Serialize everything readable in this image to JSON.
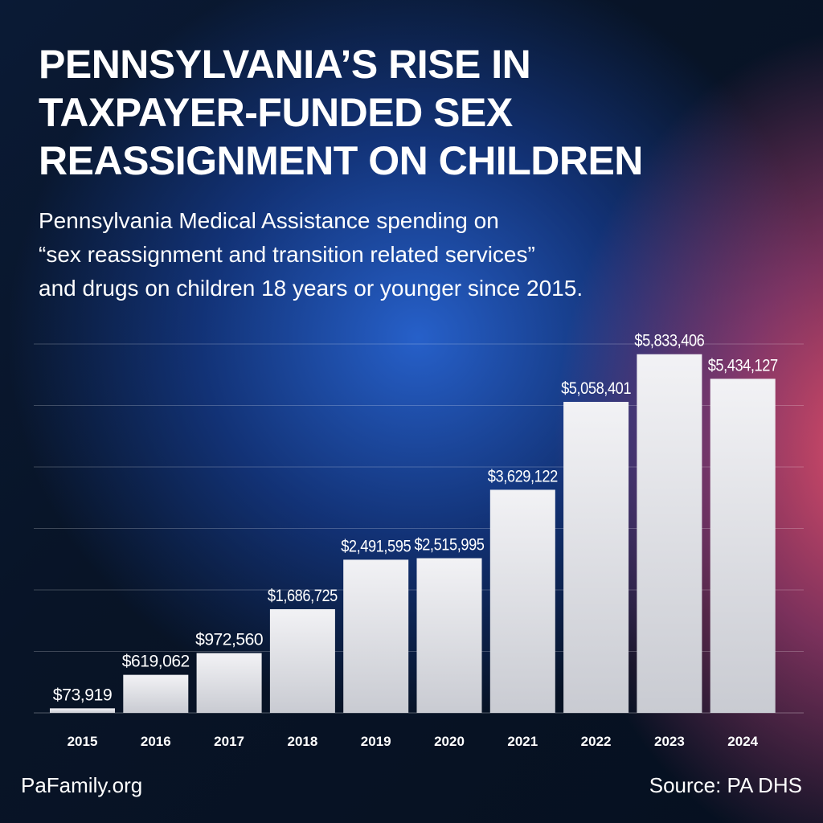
{
  "title_lines": [
    "PENNSYLVANIA’S RISE IN",
    "TAXPAYER-FUNDED SEX",
    "REASSIGNMENT ON CHILDREN"
  ],
  "subtitle_lines": [
    "Pennsylvania Medical Assistance spending on",
    "“sex reassignment and transition related services”",
    "and drugs on children 18 years or younger since 2015."
  ],
  "footer": {
    "brand": "PaFamily.org",
    "source": "Source: PA DHS"
  },
  "colors": {
    "bar": "#e8e8ec",
    "text": "#ffffff",
    "background_blue": "#1f5fc8",
    "background_pink": "#e8506e"
  },
  "chart_data": {
    "type": "bar",
    "title": "",
    "xlabel": "",
    "ylabel": "",
    "categories": [
      "2015",
      "2016",
      "2017",
      "2018",
      "2019",
      "2020",
      "2021",
      "2022",
      "2023",
      "2024"
    ],
    "values": [
      73919,
      619062,
      972560,
      1686725,
      2491595,
      2515995,
      3629122,
      5058401,
      5833406,
      5434127
    ],
    "data_labels": [
      "$73,919",
      "$619,062",
      "$972,560",
      "$1,686,725",
      "$2,491,595",
      "$2,515,995",
      "$3,629,122",
      "$5,058,401",
      "$5,833,406",
      "$5,434,127"
    ],
    "ylim": [
      0,
      6000000
    ],
    "grid": true,
    "y_tick_labels_shown": false
  }
}
